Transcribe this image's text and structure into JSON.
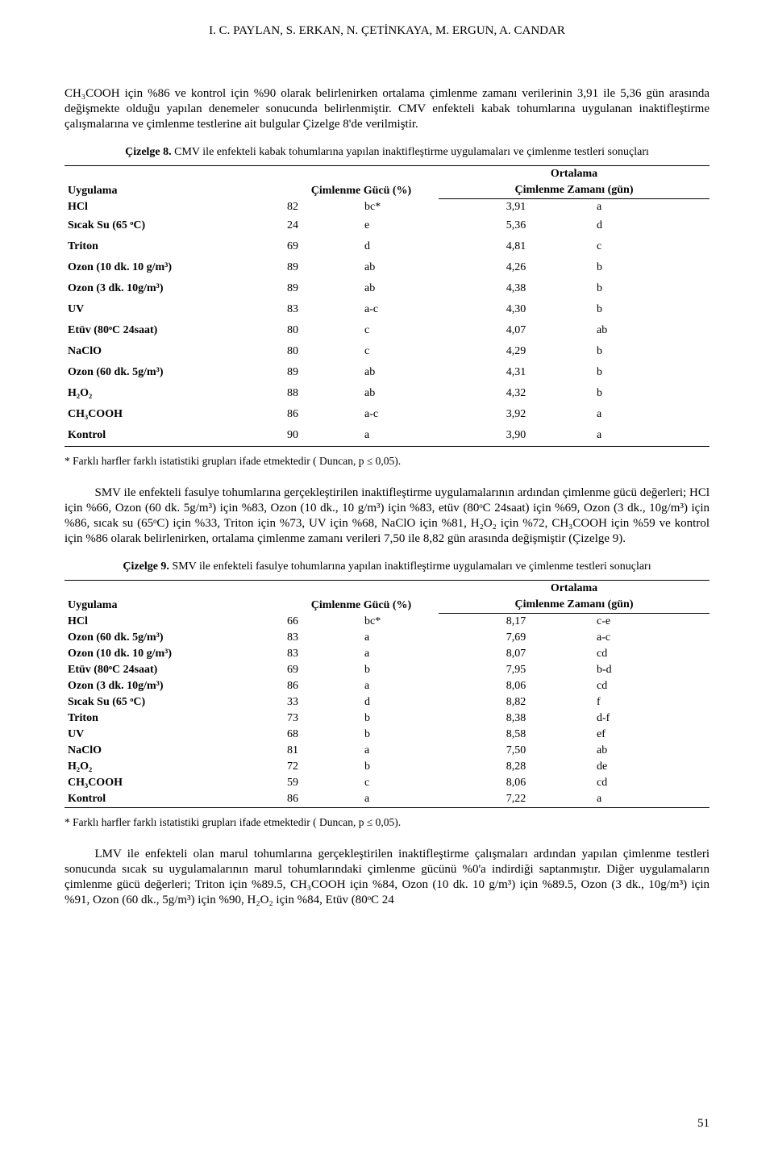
{
  "header": "I. C. PAYLAN, S. ERKAN, N. ÇETİNKAYA, M. ERGUN, A. CANDAR",
  "paragraphs": {
    "p1": "CH₃COOH için %86 ve kontrol için %90 olarak belirlenirken ortalama çimlenme zamanı verilerinin 3,91 ile 5,36 gün arasında değişmekte olduğu yapılan denemeler sonucunda belirlenmiştir. CMV enfekteli kabak tohumlarına uygulanan inaktifleştirme çalışmalarına ve çimlenme testlerine ait bulgular Çizelge 8'de verilmiştir.",
    "p2": "SMV ile enfekteli fasulye tohumlarına gerçekleştirilen inaktifleştirme uygulamalarının ardından çimlenme gücü değerleri; HCl için %66, Ozon (60 dk. 5g/m³) için %83, Ozon (10 dk., 10 g/m³) için %83, etüv (80ᵒC 24saat) için %69, Ozon (3 dk., 10g/m³) için %86, sıcak su (65ᵒC) için %33, Triton için %73, UV için %68, NaClO için %81, H₂O₂ için %72, CH₃COOH için %59 ve kontrol için %86 olarak belirlenirken, ortalama çimlenme zamanı verileri 7,50 ile 8,82 gün arasında değişmiştir (Çizelge 9).",
    "p3": "LMV ile enfekteli olan marul tohumlarına gerçekleştirilen inaktifleştirme çalışmaları ardından yapılan çimlenme testleri sonucunda sıcak su uygulamalarının marul tohumlarındaki çimlenme gücünü %0'a indirdiği saptanmıştır. Diğer uygulamaların çimlenme gücü değerleri; Triton için %89.5, CH₃COOH için %84, Ozon (10 dk. 10 g/m³) için %89.5, Ozon (3 dk., 10g/m³) için %91, Ozon (60 dk., 5g/m³) için %90, H₂O₂ için %84, Etüv (80ᵒC 24"
  },
  "table8": {
    "caption_bold": "Çizelge 8.",
    "caption_rest": " CMV ile enfekteli kabak tohumlarına yapılan inaktifleştirme uygulamaları ve çimlenme testleri sonuçları",
    "headers": {
      "treatment": "Uygulama",
      "germ": "Çimlenme Gücü (%)",
      "ort": "Ortalama",
      "time": "Çimlenme Zamanı (gün)"
    },
    "rows": [
      {
        "t": "HCl",
        "v": "82",
        "g": "bc*",
        "tm": "3,91",
        "tg": "a",
        "compact": true
      },
      {
        "t": "Sıcak Su (65 ᵒC)",
        "v": "24",
        "g": "e",
        "tm": "5,36",
        "tg": "d"
      },
      {
        "t": "Triton",
        "v": "69",
        "g": "d",
        "tm": "4,81",
        "tg": "c"
      },
      {
        "t": "Ozon (10 dk. 10 g/m³)",
        "v": "89",
        "g": "ab",
        "tm": "4,26",
        "tg": "b"
      },
      {
        "t": "Ozon (3 dk. 10g/m³)",
        "v": "89",
        "g": "ab",
        "tm": "4,38",
        "tg": "b"
      },
      {
        "t": "UV",
        "v": "83",
        "g": "a-c",
        "tm": "4,30",
        "tg": "b"
      },
      {
        "t": "Etüv (80ᵒC 24saat)",
        "v": "80",
        "g": "c",
        "tm": "4,07",
        "tg": "ab"
      },
      {
        "t": "NaClO",
        "v": "80",
        "g": "c",
        "tm": "4,29",
        "tg": "b"
      },
      {
        "t": "Ozon (60 dk. 5g/m³)",
        "v": "89",
        "g": "ab",
        "tm": "4,31",
        "tg": "b"
      },
      {
        "t": "H₂O₂",
        "v": "88",
        "g": "ab",
        "tm": "4,32",
        "tg": "b"
      },
      {
        "t": "CH₃COOH",
        "v": "86",
        "g": "a-c",
        "tm": "3,92",
        "tg": "a"
      },
      {
        "t": "Kontrol",
        "v": "90",
        "g": "a",
        "tm": "3,90",
        "tg": "a"
      }
    ]
  },
  "table9": {
    "caption_bold": "Çizelge 9.",
    "caption_rest": " SMV ile enfekteli fasulye tohumlarına yapılan inaktifleştirme uygulamaları ve çimlenme testleri sonuçları",
    "headers": {
      "treatment": "Uygulama",
      "germ": "Çimlenme Gücü (%)",
      "ort": "Ortalama",
      "time": "Çimlenme Zamanı (gün)"
    },
    "rows": [
      {
        "t": "HCl",
        "v": "66",
        "g": "bc*",
        "tm": "8,17",
        "tg": "c-e"
      },
      {
        "t": "Ozon (60 dk. 5g/m³)",
        "v": "83",
        "g": "a",
        "tm": "7,69",
        "tg": "a-c"
      },
      {
        "t": "Ozon (10 dk. 10 g/m³)",
        "v": "83",
        "g": "a",
        "tm": "8,07",
        "tg": "cd"
      },
      {
        "t": "Etüv (80ᵒC 24saat)",
        "v": "69",
        "g": "b",
        "tm": "7,95",
        "tg": "b-d"
      },
      {
        "t": "Ozon (3 dk. 10g/m³)",
        "v": "86",
        "g": "a",
        "tm": "8,06",
        "tg": "cd"
      },
      {
        "t": "Sıcak Su (65 ᵒC)",
        "v": "33",
        "g": "d",
        "tm": "8,82",
        "tg": "f"
      },
      {
        "t": "Triton",
        "v": "73",
        "g": "b",
        "tm": "8,38",
        "tg": "d-f"
      },
      {
        "t": "UV",
        "v": "68",
        "g": "b",
        "tm": "8,58",
        "tg": "ef"
      },
      {
        "t": "NaClO",
        "v": "81",
        "g": "a",
        "tm": "7,50",
        "tg": "ab"
      },
      {
        "t": "H₂O₂",
        "v": "72",
        "g": "b",
        "tm": "8,28",
        "tg": "de"
      },
      {
        "t": "CH₃COOH",
        "v": "59",
        "g": "c",
        "tm": "8,06",
        "tg": "cd"
      },
      {
        "t": "Kontrol",
        "v": "86",
        "g": "a",
        "tm": "7,22",
        "tg": "a"
      }
    ]
  },
  "footnote": "* Farklı harfler farklı istatistiki grupları ifade etmektedir ( Duncan, p ≤ 0,05).",
  "pageno": "51",
  "style": {
    "colwidths": {
      "treat": "34%",
      "val": "12%",
      "grp": "12%",
      "time": "24%",
      "tgrp": "18%"
    },
    "row_padding_loose": "5px 4px",
    "row_padding_tight": "2px 4px"
  }
}
